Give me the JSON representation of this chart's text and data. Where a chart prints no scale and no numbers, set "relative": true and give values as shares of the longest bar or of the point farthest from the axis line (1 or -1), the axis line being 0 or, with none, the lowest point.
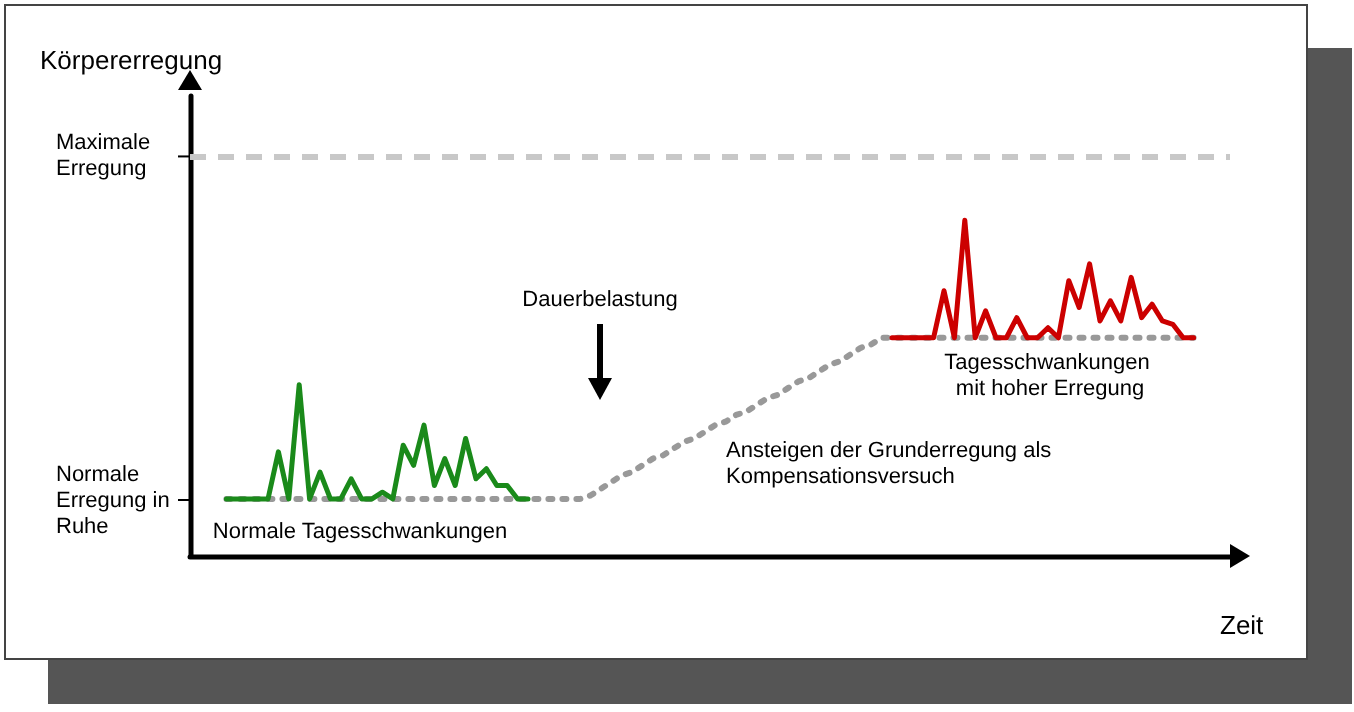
{
  "chart_data": {
    "type": "line",
    "relative": true,
    "xlabel": "Zeit",
    "marker": "none",
    "line_style": "solid",
    "categories": [
      null,
      null,
      null,
      null,
      null,
      null,
      null,
      null,
      null,
      null,
      null,
      null,
      null,
      null,
      null,
      null,
      null,
      null,
      null,
      null,
      null,
      null,
      null,
      null,
      null,
      null,
      null,
      null,
      null,
      null,
      null,
      null,
      null,
      null,
      null,
      null,
      null,
      null,
      null,
      null,
      null,
      null,
      null,
      null,
      null,
      null,
      null,
      null,
      null,
      null,
      null,
      null,
      null,
      null,
      null,
      null,
      null,
      null,
      null,
      null,
      null,
      null,
      null,
      null,
      null,
      null,
      null,
      null,
      null,
      null,
      null,
      null,
      null,
      null,
      null,
      null,
      null,
      null,
      null,
      null,
      null,
      null,
      null,
      null,
      null,
      null,
      null,
      null,
      null,
      null,
      null,
      null,
      null,
      null,
      null,
      null,
      null,
      null,
      null,
      null
    ],
    "series": [
      {
        "color": "#999999",
        "line_style": "dotted",
        "values": [
          null,
          null,
          null,
          0.17,
          0.17,
          0.17,
          0.17,
          0.17,
          0.17,
          0.17,
          0.17,
          0.17,
          0.17,
          0.17,
          0.17,
          0.17,
          0.17,
          0.17,
          0.17,
          0.17,
          0.17,
          0.17,
          0.17,
          0.17,
          0.17,
          0.17,
          0.17,
          0.17,
          0.17,
          0.17,
          0.17,
          0.17,
          0.17,
          0.17,
          0.17,
          0.17,
          0.17,
          0.17,
          0.18,
          0.2,
          0.22,
          0.24,
          0.25,
          0.27,
          0.29,
          0.3,
          0.32,
          0.34,
          0.35,
          0.37,
          0.39,
          0.4,
          0.42,
          0.43,
          0.45,
          0.47,
          0.48,
          0.5,
          0.52,
          0.53,
          0.55,
          0.57,
          0.58,
          0.6,
          0.62,
          0.63,
          0.65,
          0.65,
          0.65,
          0.65,
          0.65,
          0.65,
          0.65,
          0.65,
          0.65,
          0.65,
          0.65,
          0.65,
          0.65,
          0.65,
          0.65,
          0.65,
          0.65,
          0.65,
          0.65,
          0.65,
          0.65,
          0.65,
          0.65,
          0.65,
          0.65,
          0.65,
          0.65,
          0.65,
          0.65,
          0.65,
          0.65,
          null,
          null,
          null
        ]
      },
      {
        "color": "#1a8a1a",
        "values": [
          null,
          null,
          null,
          0.17,
          0.17,
          0.17,
          0.17,
          0.17,
          0.31,
          0.17,
          0.51,
          0.17,
          0.25,
          0.17,
          0.17,
          0.23,
          0.17,
          0.17,
          0.19,
          0.17,
          0.33,
          0.27,
          0.39,
          0.21,
          0.29,
          0.21,
          0.35,
          0.23,
          0.26,
          0.21,
          0.21,
          0.17,
          0.17,
          null,
          null,
          null,
          null,
          null,
          null,
          null,
          null,
          null,
          null,
          null,
          null,
          null,
          null,
          null,
          null,
          null,
          null,
          null,
          null,
          null,
          null,
          null,
          null,
          null,
          null,
          null,
          null,
          null,
          null,
          null,
          null,
          null,
          null,
          null,
          null,
          null,
          null,
          null,
          null,
          null,
          null,
          null,
          null,
          null,
          null,
          null,
          null,
          null,
          null,
          null,
          null,
          null,
          null,
          null,
          null,
          null,
          null,
          null,
          null,
          null,
          null,
          null,
          null,
          null,
          null,
          null
        ]
      },
      {
        "color": "#cc0000",
        "values": [
          null,
          null,
          null,
          null,
          null,
          null,
          null,
          null,
          null,
          null,
          null,
          null,
          null,
          null,
          null,
          null,
          null,
          null,
          null,
          null,
          null,
          null,
          null,
          null,
          null,
          null,
          null,
          null,
          null,
          null,
          null,
          null,
          null,
          null,
          null,
          null,
          null,
          null,
          null,
          null,
          null,
          null,
          null,
          null,
          null,
          null,
          null,
          null,
          null,
          null,
          null,
          null,
          null,
          null,
          null,
          null,
          null,
          null,
          null,
          null,
          null,
          null,
          null,
          null,
          null,
          null,
          null,
          0.65,
          0.65,
          0.65,
          0.65,
          0.65,
          0.79,
          0.65,
          1,
          0.65,
          0.73,
          0.65,
          0.65,
          0.71,
          0.65,
          0.65,
          0.68,
          0.65,
          0.82,
          0.74,
          0.87,
          0.7,
          0.76,
          0.7,
          0.83,
          0.71,
          0.75,
          0.7,
          0.69,
          0.65,
          0.65,
          null,
          null,
          null
        ]
      }
    ],
    "ref_lines": [
      {
        "axis": "y",
        "value": 1.19,
        "label": "Maximale Erregung",
        "color": "#c8c8c8",
        "line_style": "dashed"
      }
    ],
    "annotations": [
      "Körpererregung",
      "Normale Erregung in Ruhe",
      "Normale Tagesschwankungen",
      "Dauerbelastung",
      "Ansteigen der Grunderregung als Kompensationsversuch",
      "Tagesschwankungen mit hoher Erregung"
    ]
  }
}
